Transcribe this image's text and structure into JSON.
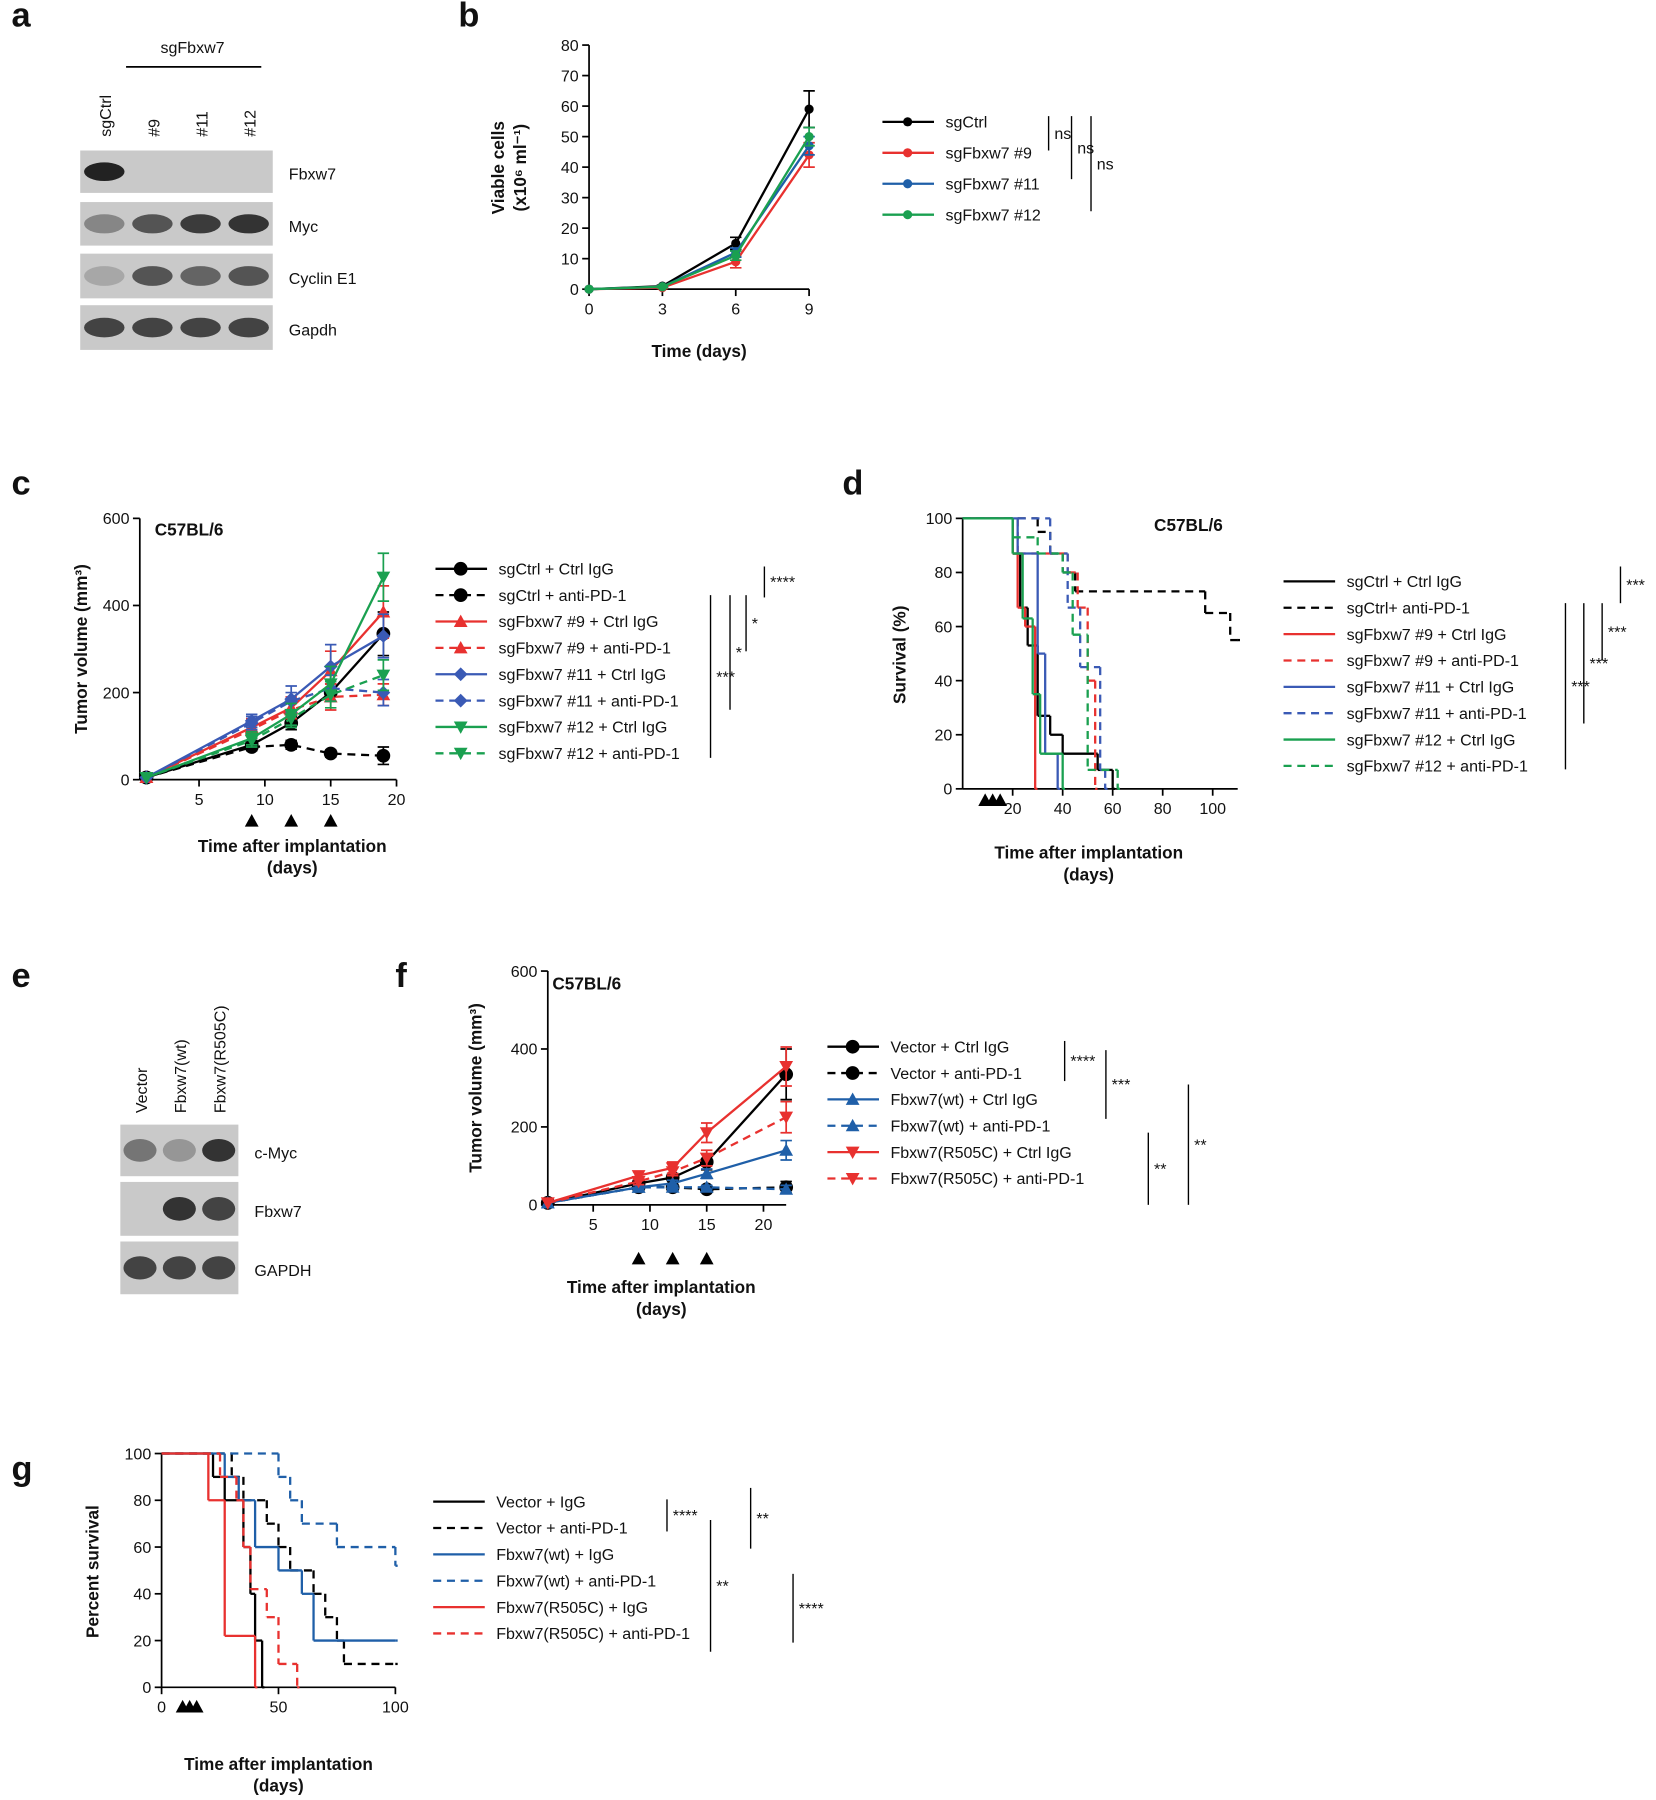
{
  "blots": [
    {
      "panel": "a",
      "group": "sgFbxw7",
      "lanes": [
        "sgCtrl",
        "#9",
        "#11",
        "#12"
      ],
      "rows": [
        "Fbxw7",
        "Myc",
        "Cyclin E1",
        "Gapdh"
      ]
    },
    {
      "panel": "e",
      "lanes": [
        "Vector",
        "Fbxw7(wt)",
        "Fbxw7(R505C)"
      ],
      "rows": [
        "c-Myc",
        "Fbxw7",
        "GAPDH"
      ]
    }
  ],
  "chart_data": [
    {
      "panel": "b",
      "type": "line",
      "ylabel": [
        "Viable cells",
        "(x10⁶ ml⁻¹)"
      ],
      "xlabel": [
        "Time (days)"
      ],
      "x": [
        0,
        3,
        6,
        9
      ],
      "xlim": [
        0,
        9
      ],
      "xticks": [
        0,
        3,
        6,
        9
      ],
      "ylim": [
        0,
        80
      ],
      "yticks": [
        0,
        10,
        20,
        30,
        40,
        50,
        60,
        70,
        80
      ],
      "series": [
        {
          "name": "sgCtrl",
          "color": "#000000",
          "marker": "circle",
          "dashed": false,
          "values": [
            0,
            1,
            15,
            59
          ],
          "errors": [
            0,
            0.3,
            2,
            6
          ]
        },
        {
          "name": "sgFbxw7 #9",
          "color": "#e8312f",
          "marker": "circle",
          "dashed": false,
          "values": [
            0,
            0.5,
            9,
            44
          ],
          "errors": [
            0,
            0.3,
            2,
            4
          ]
        },
        {
          "name": "sgFbxw7 #11",
          "color": "#1f5fa8",
          "marker": "circle",
          "dashed": false,
          "values": [
            0,
            0.8,
            12,
            47
          ],
          "errors": [
            0,
            0.3,
            1.5,
            3
          ]
        },
        {
          "name": "sgFbxw7 #12",
          "color": "#1aa050",
          "marker": "circle",
          "dashed": false,
          "values": [
            0,
            0.8,
            11,
            50
          ],
          "errors": [
            0,
            0.3,
            1.5,
            3
          ]
        }
      ],
      "stats": [
        "ns",
        "ns",
        "ns"
      ]
    },
    {
      "panel": "c",
      "type": "line",
      "title": "C57BL/6",
      "ylabel": [
        "Tumor volume (mm³)"
      ],
      "xlabel": [
        "Time after implantation",
        "(days)"
      ],
      "x": [
        1,
        9,
        12,
        15,
        19
      ],
      "xlim": [
        0.5,
        20
      ],
      "xticks": [
        5,
        10,
        15,
        20
      ],
      "ylim": [
        0,
        600
      ],
      "yticks": [
        0,
        200,
        400,
        600
      ],
      "treatment_days": [
        9,
        12,
        15
      ],
      "series": [
        {
          "name": "sgCtrl + Ctrl IgG",
          "color": "#000000",
          "marker": "circle",
          "dashed": false,
          "values": [
            5,
            80,
            130,
            200,
            335
          ],
          "errors": [
            0,
            10,
            15,
            20,
            50
          ]
        },
        {
          "name": "sgCtrl + anti-PD-1",
          "color": "#000000",
          "marker": "circle",
          "dashed": true,
          "values": [
            5,
            75,
            80,
            60,
            55
          ],
          "errors": [
            0,
            8,
            10,
            8,
            20
          ]
        },
        {
          "name": "sgFbxw7 #9 + Ctrl IgG",
          "color": "#e8312f",
          "marker": "triangle",
          "dashed": false,
          "values": [
            5,
            120,
            165,
            250,
            385
          ],
          "errors": [
            0,
            20,
            25,
            45,
            60
          ]
        },
        {
          "name": "sgFbxw7 #9  + anti-PD-1",
          "color": "#e8312f",
          "marker": "triangle",
          "dashed": true,
          "values": [
            5,
            115,
            160,
            190,
            195
          ],
          "errors": [
            0,
            15,
            20,
            30,
            25
          ]
        },
        {
          "name": "sgFbxw7 #11 + Ctrl IgG",
          "color": "#3a5ab5",
          "marker": "diamond",
          "dashed": false,
          "values": [
            5,
            135,
            185,
            260,
            330
          ],
          "errors": [
            0,
            15,
            30,
            50,
            50
          ]
        },
        {
          "name": "sgFbxw7 #11  + anti-PD-1",
          "color": "#3a5ab5",
          "marker": "diamond",
          "dashed": true,
          "values": [
            5,
            130,
            180,
            210,
            200
          ],
          "errors": [
            0,
            15,
            20,
            30,
            30
          ]
        },
        {
          "name": "sgFbxw7 #12 + Ctrl IgG",
          "color": "#1aa050",
          "marker": "tri-down",
          "dashed": false,
          "values": [
            5,
            95,
            150,
            220,
            465
          ],
          "errors": [
            0,
            15,
            25,
            40,
            55
          ]
        },
        {
          "name": "sgFbxw7 #12  + anti-PD-1",
          "color": "#1aa050",
          "marker": "tri-down",
          "dashed": true,
          "values": [
            5,
            90,
            140,
            195,
            240
          ],
          "errors": [
            0,
            15,
            20,
            30,
            35
          ]
        }
      ],
      "stats": [
        "****",
        "*",
        "*",
        "***"
      ]
    },
    {
      "panel": "d",
      "type": "survival",
      "title": "C57BL/6",
      "ylabel": [
        "Survival (%)"
      ],
      "xlabel": [
        "Time after implantation",
        "(days)"
      ],
      "xlim": [
        0,
        110
      ],
      "xticks": [
        20,
        40,
        60,
        80,
        100
      ],
      "ylim": [
        0,
        100
      ],
      "yticks": [
        0,
        20,
        40,
        60,
        80,
        100
      ],
      "treatment_days": [
        9,
        12,
        15
      ],
      "series": [
        {
          "name": "sgCtrl + Ctrl IgG",
          "color": "#000000",
          "dashed": false,
          "x": [
            0,
            20,
            23,
            26,
            30,
            35,
            40,
            54,
            60
          ],
          "values": [
            100,
            87,
            67,
            53,
            27,
            20,
            13,
            7,
            0
          ]
        },
        {
          "name": "sgCtrl+ anti-PD-1",
          "color": "#000000",
          "dashed": true,
          "x": [
            0,
            30,
            35,
            40,
            45,
            97,
            107,
            110
          ],
          "values": [
            100,
            95,
            87,
            80,
            73,
            65,
            55,
            55
          ]
        },
        {
          "name": "sgFbxw7 #9 + Ctrl IgG",
          "color": "#e8312f",
          "dashed": false,
          "x": [
            0,
            20,
            22,
            25,
            29
          ],
          "values": [
            100,
            87,
            67,
            60,
            0
          ]
        },
        {
          "name": "sgFbxw7 #9  + anti-PD-1",
          "color": "#e8312f",
          "dashed": true,
          "x": [
            0,
            22,
            42,
            46,
            50,
            53
          ],
          "values": [
            100,
            87,
            80,
            67,
            40,
            0
          ]
        },
        {
          "name": "sgFbxw7 #11 + Ctrl IgG",
          "color": "#3a5ab5",
          "dashed": false,
          "x": [
            0,
            22,
            30,
            33,
            38
          ],
          "values": [
            100,
            87,
            50,
            13,
            0
          ]
        },
        {
          "name": "sgFbxw7 #11  + anti-PD-1",
          "color": "#3a5ab5",
          "dashed": true,
          "x": [
            0,
            35,
            42,
            47,
            55,
            57
          ],
          "values": [
            100,
            87,
            67,
            45,
            7,
            0
          ]
        },
        {
          "name": "sgFbxw7 #12 + Ctrl IgG",
          "color": "#1aa050",
          "dashed": false,
          "x": [
            0,
            20,
            24,
            28,
            31,
            40
          ],
          "values": [
            100,
            87,
            63,
            35,
            13,
            0
          ]
        },
        {
          "name": "sgFbxw7 #12  + anti-PD-1",
          "color": "#1aa050",
          "dashed": true,
          "x": [
            0,
            20,
            30,
            40,
            44,
            50,
            62
          ],
          "values": [
            100,
            93,
            87,
            80,
            57,
            7,
            0
          ]
        }
      ],
      "stats": [
        "***",
        "***",
        "***",
        "***"
      ]
    },
    {
      "panel": "f",
      "type": "line",
      "title": "C57BL/6",
      "ylabel": [
        "Tumor volume (mm³)"
      ],
      "xlabel": [
        "Time after implantation",
        "(days)"
      ],
      "x": [
        1,
        9,
        12,
        15,
        22
      ],
      "xlim": [
        1,
        22
      ],
      "xticks": [
        5,
        10,
        15,
        20
      ],
      "ylim": [
        0,
        600
      ],
      "yticks": [
        0,
        200,
        400,
        600
      ],
      "treatment_days": [
        9,
        12,
        15
      ],
      "series": [
        {
          "name": "Vector + Ctrl IgG",
          "color": "#000000",
          "marker": "circle",
          "dashed": false,
          "values": [
            5,
            55,
            70,
            110,
            335
          ],
          "errors": [
            0,
            8,
            10,
            20,
            65
          ]
        },
        {
          "name": "Vector + anti-PD-1",
          "color": "#000000",
          "marker": "circle",
          "dashed": true,
          "values": [
            5,
            45,
            45,
            40,
            45
          ],
          "errors": [
            0,
            5,
            5,
            5,
            15
          ]
        },
        {
          "name": "Fbxw7(wt) + Ctrl IgG",
          "color": "#1f5fa8",
          "marker": "triangle",
          "dashed": false,
          "values": [
            5,
            45,
            55,
            80,
            140
          ],
          "errors": [
            0,
            5,
            8,
            12,
            25
          ]
        },
        {
          "name": "Fbxw7(wt) + anti-PD-1",
          "color": "#1f5fa8",
          "marker": "triangle",
          "dashed": true,
          "values": [
            5,
            45,
            45,
            45,
            40
          ],
          "errors": [
            0,
            5,
            5,
            5,
            10
          ]
        },
        {
          "name": "Fbxw7(R505C) + Ctrl IgG",
          "color": "#e8312f",
          "marker": "tri-down",
          "dashed": false,
          "values": [
            5,
            75,
            95,
            185,
            355
          ],
          "errors": [
            0,
            10,
            15,
            25,
            50
          ]
        },
        {
          "name": "Fbxw7(R505C) + anti-PD-1",
          "color": "#e8312f",
          "marker": "tri-down",
          "dashed": true,
          "values": [
            5,
            60,
            85,
            120,
            225
          ],
          "errors": [
            0,
            8,
            10,
            20,
            40
          ]
        }
      ],
      "stats": [
        "****",
        "***",
        "**",
        "**"
      ]
    },
    {
      "panel": "g",
      "type": "survival",
      "ylabel": [
        "Percent survival"
      ],
      "xlabel": [
        "Time after implantation",
        "(days)"
      ],
      "xlim": [
        0,
        100
      ],
      "xticks": [
        0,
        50,
        100
      ],
      "ylim": [
        0,
        100
      ],
      "yticks": [
        0,
        20,
        40,
        60,
        80,
        100
      ],
      "treatment_days": [
        9,
        12,
        15
      ],
      "series": [
        {
          "name": "Vector + IgG",
          "color": "#000000",
          "dashed": false,
          "x": [
            0,
            22,
            27,
            35,
            38,
            40,
            43
          ],
          "values": [
            100,
            90,
            80,
            60,
            40,
            20,
            0
          ]
        },
        {
          "name": "Vector + anti-PD-1",
          "color": "#000000",
          "dashed": true,
          "x": [
            0,
            30,
            35,
            45,
            50,
            55,
            65,
            70,
            75,
            78,
            100
          ],
          "values": [
            100,
            90,
            80,
            70,
            60,
            50,
            40,
            30,
            20,
            10,
            10
          ]
        },
        {
          "name": "Fbxw7(wt) + IgG",
          "color": "#1f5fa8",
          "dashed": false,
          "x": [
            0,
            27,
            33,
            40,
            50,
            60,
            65,
            100
          ],
          "values": [
            100,
            90,
            80,
            60,
            50,
            40,
            20,
            20
          ]
        },
        {
          "name": "Fbxw7(wt) + anti-PD-1",
          "color": "#1f5fa8",
          "dashed": true,
          "x": [
            0,
            50,
            55,
            60,
            75,
            100
          ],
          "values": [
            100,
            90,
            80,
            70,
            60,
            52
          ]
        },
        {
          "name": "Fbxw7(R505C) + IgG",
          "color": "#e8312f",
          "dashed": false,
          "x": [
            0,
            20,
            27,
            40
          ],
          "values": [
            100,
            80,
            22,
            0
          ]
        },
        {
          "name": "Fbxw7(R505C) + anti-PD-1",
          "color": "#e8312f",
          "dashed": true,
          "x": [
            0,
            25,
            32,
            35,
            38,
            45,
            50,
            58
          ],
          "values": [
            100,
            90,
            80,
            60,
            42,
            30,
            10,
            0
          ]
        }
      ],
      "stats": [
        "****",
        "**",
        "**",
        "****"
      ]
    }
  ]
}
